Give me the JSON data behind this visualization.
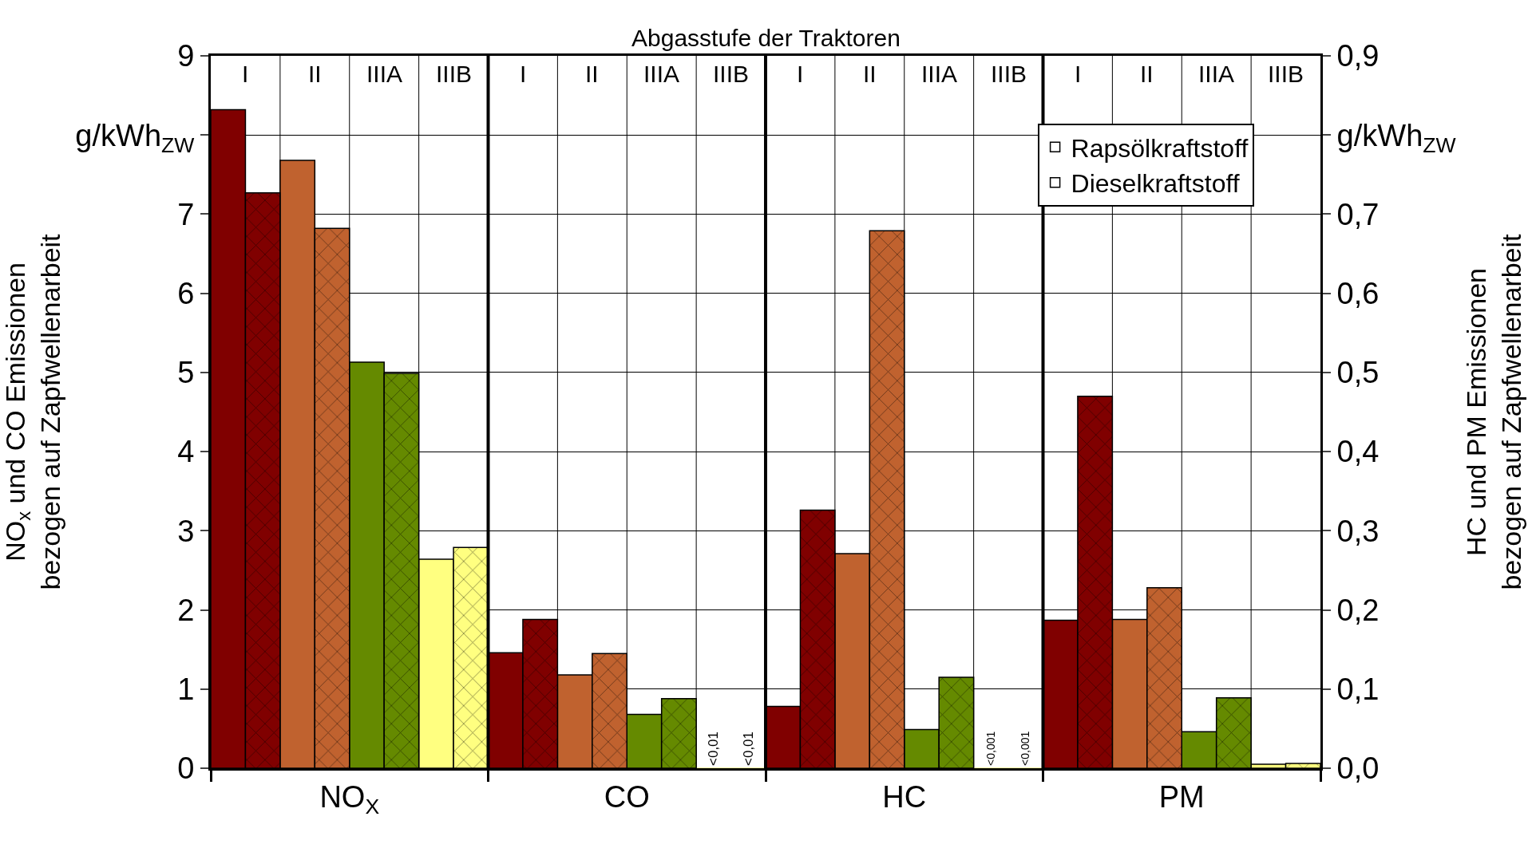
{
  "chart_data": {
    "type": "bar",
    "x2label": "Abgasstufe der Traktoren",
    "ylabel": "NO$_{x}$ und CO Emissionen\nbezogen auf Zapfwellenarbeit",
    "y2label": "HC und PM Emissionen\nbezogen auf Zapfwellenarbeit",
    "categories": [
      "I",
      "II",
      "IIIA",
      "IIIB",
      "I",
      "II",
      "IIIA",
      "IIIB",
      "I",
      "II",
      "IIIA",
      "IIIB",
      "I",
      "II",
      "IIIA",
      "IIIB"
    ],
    "annotations": [
      "NO$_{X}$",
      "CO",
      "HC",
      "PM"
    ],
    "series": [
      {
        "name": "Rapsölkraftstoff",
        "color": "#ffffff",
        "colors": [
          "#800000",
          "#c0622f",
          "#658a00",
          "#ffff80",
          "#800000",
          "#c0622f",
          "#658a00",
          "#ffff80",
          "#800000",
          "#c0622f",
          "#658a00",
          "#ffff80",
          "#800000",
          "#c0622f",
          "#658a00",
          "#ffff80"
        ],
        "values": [
          8.32,
          7.68,
          5.13,
          2.64,
          1.46,
          1.18,
          0.68,
          0,
          null,
          null,
          null,
          null,
          null,
          null,
          null,
          null
        ],
        "value_labels": [
          null,
          null,
          null,
          null,
          null,
          null,
          null,
          "<0,01",
          null,
          null,
          null,
          null,
          null,
          null,
          null,
          null
        ]
      },
      {
        "name": "Dieselkraftstoff",
        "color": "#ffffff",
        "colors": [
          "#800000",
          "#c0622f",
          "#658a00",
          "#ffff80",
          "#800000",
          "#c0622f",
          "#658a00",
          "#ffff80",
          "#800000",
          "#c0622f",
          "#658a00",
          "#ffff80",
          "#800000",
          "#c0622f",
          "#658a00",
          "#ffff80"
        ],
        "values": [
          7.27,
          6.82,
          4.99,
          2.79,
          1.88,
          1.45,
          0.88,
          0,
          null,
          null,
          null,
          null,
          null,
          null,
          null,
          null
        ],
        "value_labels": [
          null,
          null,
          null,
          null,
          null,
          null,
          null,
          "<0,01",
          null,
          null,
          null,
          null,
          null,
          null,
          null,
          null
        ]
      },
      {
        "axis": "y2",
        "color": "#ffffff",
        "colors": [
          "#800000",
          "#c0622f",
          "#658a00",
          "#ffff80",
          "#800000",
          "#c0622f",
          "#658a00",
          "#ffff80",
          "#800000",
          "#c0622f",
          "#658a00",
          "#ffff80",
          "#800000",
          "#c0622f",
          "#658a00",
          "#ffff80"
        ],
        "values": [
          null,
          null,
          null,
          null,
          null,
          null,
          null,
          null,
          0.078,
          0.271,
          0.049,
          0,
          0.187,
          0.188,
          0.046,
          0.005
        ],
        "value_labels": [
          null,
          null,
          null,
          null,
          null,
          null,
          null,
          null,
          null,
          null,
          null,
          "<0,001",
          null,
          null,
          null,
          null
        ]
      },
      {
        "axis": "y2",
        "color": "#ffffff",
        "colors": [
          "#800000",
          "#c0622f",
          "#658a00",
          "#ffff80",
          "#800000",
          "#c0622f",
          "#658a00",
          "#ffff80",
          "#800000",
          "#c0622f",
          "#658a00",
          "#ffff80",
          "#800000",
          "#c0622f",
          "#658a00",
          "#ffff80"
        ],
        "values": [
          null,
          null,
          null,
          null,
          null,
          null,
          null,
          null,
          0.326,
          0.679,
          0.115,
          0,
          0.47,
          0.228,
          0.089,
          0.006
        ],
        "value_labels": [
          null,
          null,
          null,
          null,
          null,
          null,
          null,
          null,
          null,
          null,
          null,
          "<0,001",
          null,
          null,
          null,
          null
        ]
      }
    ],
    "ylim": [
      0,
      9
    ],
    "yticks": [
      0,
      1,
      2,
      3,
      4,
      5,
      6,
      7,
      {
        "value": 8,
        "label": "g/kWh$_{ZW}$"
      },
      9
    ],
    "y2lim": [
      0,
      0.9
    ],
    "y2ticks": [
      {
        "value": 0,
        "label": "0,0"
      },
      {
        "value": 0.1,
        "label": "0,1"
      },
      {
        "value": 0.2,
        "label": "0,2"
      },
      {
        "value": 0.3,
        "label": "0,3"
      },
      {
        "value": 0.4,
        "label": "0,4"
      },
      {
        "value": 0.5,
        "label": "0,5"
      },
      {
        "value": 0.6,
        "label": "0,6"
      },
      {
        "value": 0.7,
        "label": "0,7"
      },
      {
        "value": 0.8,
        "label": "g/kWh$_{ZW}$"
      },
      {
        "value": 0.9,
        "label": "0,9"
      }
    ],
    "grid": true,
    "legend": "top right"
  }
}
